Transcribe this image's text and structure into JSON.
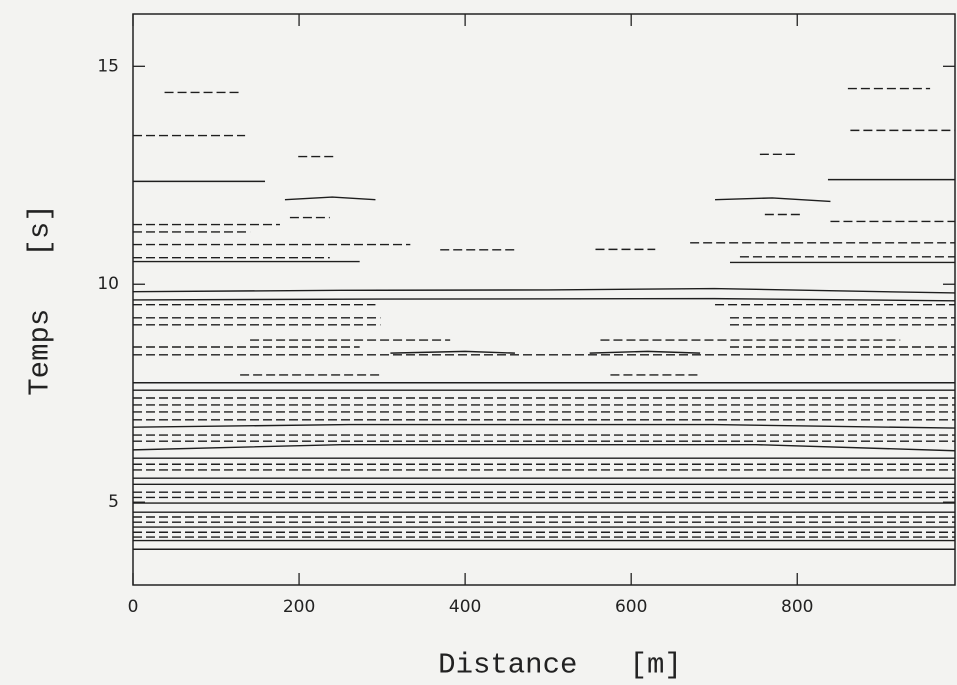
{
  "chart_data": {
    "type": "contour",
    "x_label": "Distance   [m]",
    "y_label": "Temps   [s]",
    "xlim": [
      0,
      990
    ],
    "ylim": [
      3.1,
      16.2
    ],
    "xticks": [
      0,
      200,
      400,
      600,
      800
    ],
    "yticks": [
      5,
      10,
      15
    ],
    "color": "#1e1e1e",
    "contours": [
      {
        "dashed": true,
        "x": [
          38,
          128
        ],
        "y": [
          14.4,
          14.4
        ]
      },
      {
        "dashed": true,
        "x": [
          861,
          960
        ],
        "y": [
          14.49,
          14.49
        ]
      },
      {
        "dashed": true,
        "x": [
          0,
          135
        ],
        "y": [
          13.41,
          13.41
        ]
      },
      {
        "dashed": true,
        "x": [
          864,
          990
        ],
        "y": [
          13.53,
          13.53
        ]
      },
      {
        "dashed": true,
        "x": [
          199,
          243
        ],
        "y": [
          12.93,
          12.93
        ]
      },
      {
        "dashed": true,
        "x": [
          755,
          798
        ],
        "y": [
          12.98,
          12.98
        ]
      },
      {
        "dashed": false,
        "x": [
          0,
          159
        ],
        "y": [
          12.36,
          12.36
        ]
      },
      {
        "dashed": false,
        "x": [
          837,
          990
        ],
        "y": [
          12.4,
          12.4
        ]
      },
      {
        "dashed": false,
        "x": [
          183,
          240,
          292
        ],
        "y": [
          11.94,
          12.0,
          11.94
        ]
      },
      {
        "dashed": false,
        "x": [
          701,
          770,
          840
        ],
        "y": [
          11.94,
          11.98,
          11.9
        ]
      },
      {
        "dashed": true,
        "x": [
          189,
          237
        ],
        "y": [
          11.53,
          11.53
        ]
      },
      {
        "dashed": true,
        "x": [
          761,
          804
        ],
        "y": [
          11.6,
          11.6
        ]
      },
      {
        "dashed": true,
        "x": [
          0,
          177
        ],
        "y": [
          11.37,
          11.37
        ]
      },
      {
        "dashed": true,
        "x": [
          840,
          990
        ],
        "y": [
          11.44,
          11.44
        ]
      },
      {
        "dashed": true,
        "x": [
          0,
          141
        ],
        "y": [
          11.2,
          11.2
        ]
      },
      {
        "dashed": true,
        "x": [
          0,
          334
        ],
        "y": [
          10.91,
          10.91
        ]
      },
      {
        "dashed": true,
        "x": [
          671,
          990
        ],
        "y": [
          10.95,
          10.95
        ]
      },
      {
        "dashed": true,
        "x": [
          370,
          460
        ],
        "y": [
          10.79,
          10.79
        ]
      },
      {
        "dashed": true,
        "x": [
          557,
          629
        ],
        "y": [
          10.8,
          10.8
        ]
      },
      {
        "dashed": true,
        "x": [
          0,
          237
        ],
        "y": [
          10.61,
          10.61
        ]
      },
      {
        "dashed": true,
        "x": [
          731,
          990
        ],
        "y": [
          10.63,
          10.63
        ]
      },
      {
        "dashed": false,
        "x": [
          0,
          273
        ],
        "y": [
          10.52,
          10.52
        ]
      },
      {
        "dashed": false,
        "x": [
          719,
          990
        ],
        "y": [
          10.5,
          10.5
        ]
      },
      {
        "dashed": false,
        "x": [
          0,
          250,
          500,
          700,
          990
        ],
        "y": [
          9.83,
          9.86,
          9.87,
          9.9,
          9.8
        ]
      },
      {
        "dashed": false,
        "x": [
          0,
          300,
          700,
          990
        ],
        "y": [
          9.64,
          9.66,
          9.67,
          9.62
        ]
      },
      {
        "dashed": true,
        "x": [
          0,
          292
        ],
        "y": [
          9.53,
          9.53
        ]
      },
      {
        "dashed": true,
        "x": [
          701,
          990
        ],
        "y": [
          9.53,
          9.53
        ]
      },
      {
        "dashed": true,
        "x": [
          0,
          298
        ],
        "y": [
          9.23,
          9.23
        ]
      },
      {
        "dashed": true,
        "x": [
          719,
          990
        ],
        "y": [
          9.23,
          9.23
        ]
      },
      {
        "dashed": true,
        "x": [
          0,
          298
        ],
        "y": [
          9.07,
          9.07
        ]
      },
      {
        "dashed": true,
        "x": [
          719,
          990
        ],
        "y": [
          9.07,
          9.07
        ]
      },
      {
        "dashed": true,
        "x": [
          141,
          382
        ],
        "y": [
          8.72,
          8.72
        ]
      },
      {
        "dashed": true,
        "x": [
          563,
          924
        ],
        "y": [
          8.72,
          8.72
        ]
      },
      {
        "dashed": true,
        "x": [
          0,
          273
        ],
        "y": [
          8.56,
          8.56
        ]
      },
      {
        "dashed": true,
        "x": [
          719,
          990
        ],
        "y": [
          8.56,
          8.56
        ]
      },
      {
        "dashed": false,
        "x": [
          310,
          400,
          460
        ],
        "y": [
          8.42,
          8.46,
          8.42
        ]
      },
      {
        "dashed": false,
        "x": [
          550,
          620,
          683
        ],
        "y": [
          8.42,
          8.46,
          8.42
        ]
      },
      {
        "dashed": true,
        "x": [
          0,
          990
        ],
        "y": [
          8.38,
          8.38
        ]
      },
      {
        "dashed": true,
        "x": [
          129,
          298
        ],
        "y": [
          7.92,
          7.92
        ]
      },
      {
        "dashed": true,
        "x": [
          575,
          683
        ],
        "y": [
          7.92,
          7.92
        ]
      },
      {
        "dashed": false,
        "x": [
          0,
          990
        ],
        "y": [
          7.74,
          7.74
        ]
      },
      {
        "dashed": false,
        "x": [
          0,
          990
        ],
        "y": [
          7.57,
          7.57
        ]
      },
      {
        "dashed": true,
        "x": [
          0,
          990
        ],
        "y": [
          7.39,
          7.39
        ]
      },
      {
        "dashed": true,
        "x": [
          0,
          990
        ],
        "y": [
          7.23,
          7.23
        ]
      },
      {
        "dashed": true,
        "x": [
          0,
          990
        ],
        "y": [
          7.07,
          7.07
        ]
      },
      {
        "dashed": true,
        "x": [
          0,
          990
        ],
        "y": [
          6.89,
          6.89
        ]
      },
      {
        "dashed": false,
        "x": [
          0,
          260,
          700,
          990
        ],
        "y": [
          6.72,
          6.78,
          6.78,
          6.7
        ]
      },
      {
        "dashed": true,
        "x": [
          0,
          990
        ],
        "y": [
          6.54,
          6.54
        ]
      },
      {
        "dashed": true,
        "x": [
          0,
          990
        ],
        "y": [
          6.4,
          6.4
        ]
      },
      {
        "dashed": false,
        "x": [
          0,
          250,
          750,
          990
        ],
        "y": [
          6.2,
          6.32,
          6.32,
          6.18
        ]
      },
      {
        "dashed": false,
        "x": [
          0,
          990
        ],
        "y": [
          6.01,
          6.01
        ]
      },
      {
        "dashed": true,
        "x": [
          0,
          990
        ],
        "y": [
          5.87,
          5.87
        ]
      },
      {
        "dashed": true,
        "x": [
          0,
          990
        ],
        "y": [
          5.74,
          5.74
        ]
      },
      {
        "dashed": false,
        "x": [
          0,
          990
        ],
        "y": [
          5.55,
          5.55
        ]
      },
      {
        "dashed": false,
        "x": [
          0,
          990
        ],
        "y": [
          5.41,
          5.41
        ]
      },
      {
        "dashed": true,
        "x": [
          0,
          990
        ],
        "y": [
          5.23,
          5.23
        ]
      },
      {
        "dashed": true,
        "x": [
          0,
          990
        ],
        "y": [
          5.11,
          5.11
        ]
      },
      {
        "dashed": false,
        "x": [
          0,
          990
        ],
        "y": [
          4.98,
          4.98
        ]
      },
      {
        "dashed": false,
        "x": [
          0,
          990
        ],
        "y": [
          4.77,
          4.77
        ]
      },
      {
        "dashed": true,
        "x": [
          0,
          990
        ],
        "y": [
          4.66,
          4.66
        ]
      },
      {
        "dashed": true,
        "x": [
          0,
          990
        ],
        "y": [
          4.54,
          4.54
        ]
      },
      {
        "dashed": false,
        "x": [
          0,
          990
        ],
        "y": [
          4.43,
          4.43
        ]
      },
      {
        "dashed": true,
        "x": [
          0,
          990
        ],
        "y": [
          4.31,
          4.31
        ]
      },
      {
        "dashed": true,
        "x": [
          0,
          990
        ],
        "y": [
          4.2,
          4.2
        ]
      },
      {
        "dashed": false,
        "x": [
          0,
          990
        ],
        "y": [
          4.12,
          4.12
        ]
      },
      {
        "dashed": false,
        "x": [
          0,
          990
        ],
        "y": [
          3.92,
          3.92
        ]
      }
    ]
  }
}
